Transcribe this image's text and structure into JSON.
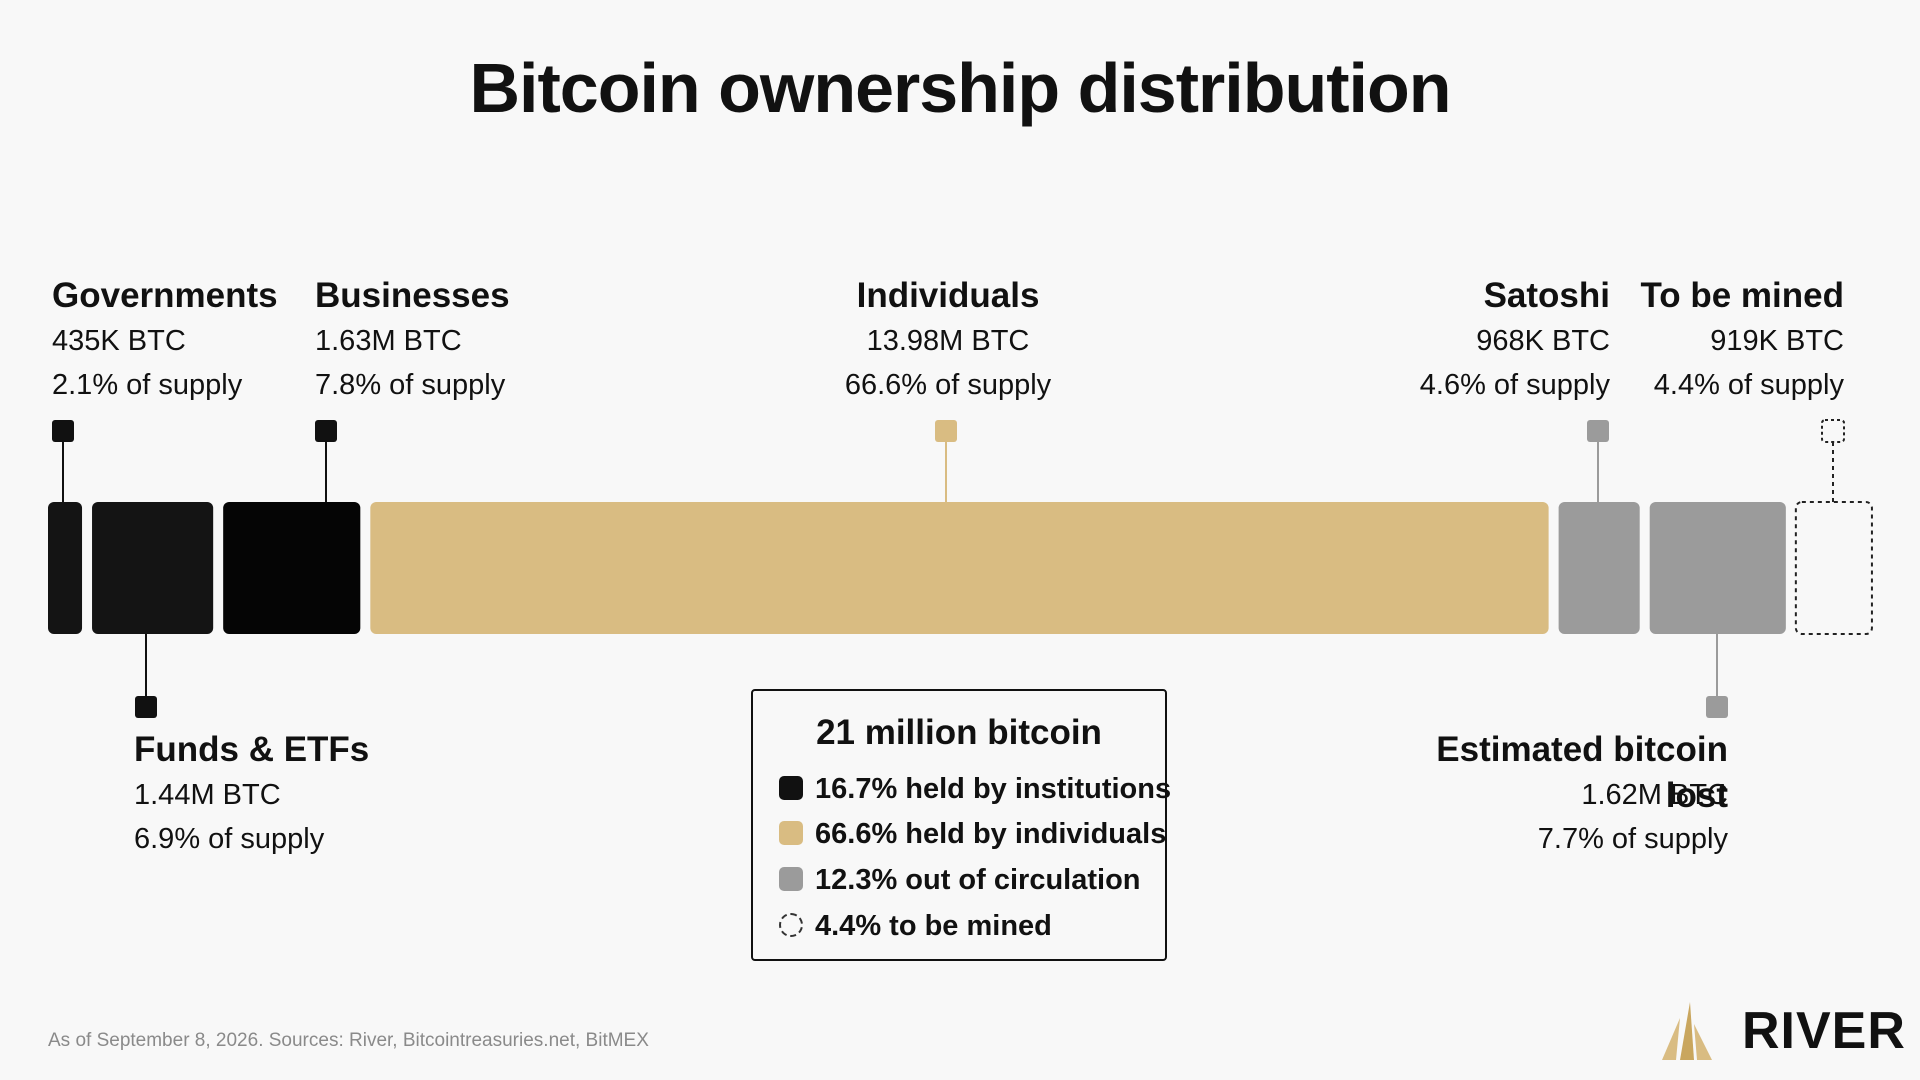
{
  "title": "Bitcoin ownership distribution",
  "colors": {
    "institution": "#141414",
    "business": "#050505",
    "individual": "#d9bc82",
    "lost": "#9b9b9b",
    "background": "#f8f8f8",
    "tick_individual": "#d9bc82",
    "tick_lost": "#9b9b9b"
  },
  "labels": {
    "governments": {
      "name": "Governments",
      "btc": "435K BTC",
      "pct": "2.1% of supply"
    },
    "businesses": {
      "name": "Businesses",
      "btc": "1.63M BTC",
      "pct": "7.8% of supply"
    },
    "individuals": {
      "name": "Individuals",
      "btc": "13.98M BTC",
      "pct": "66.6% of supply"
    },
    "satoshi": {
      "name": "Satoshi",
      "btc": "968K BTC",
      "pct": "4.6% of supply"
    },
    "to_be_mined": {
      "name": "To be mined",
      "btc": "919K BTC",
      "pct": "4.4% of supply"
    },
    "funds": {
      "name": "Funds & ETFs",
      "btc": "1.44M BTC",
      "pct": "6.9% of supply"
    },
    "lost": {
      "name": "Estimated bitcoin lost",
      "btc": "1.62M BTC",
      "pct": "7.7% of supply"
    }
  },
  "legend": {
    "title": "21 million bitcoin",
    "items": [
      {
        "text": "16.7% held by institutions",
        "swatch": "#111111",
        "style": "solid"
      },
      {
        "text": "66.6% held by individuals",
        "swatch": "#d9bc82",
        "style": "solid"
      },
      {
        "text": "12.3% out of circulation",
        "swatch": "#9b9b9b",
        "style": "solid"
      },
      {
        "text": "4.4% to be mined",
        "swatch": "none",
        "style": "dashed"
      }
    ]
  },
  "footer": "As of September 8, 2026. Sources: River, Bitcointreasuries.net, BitMEX",
  "logo": {
    "text": "RIVER",
    "icon": "river-mountain-icon"
  },
  "chart_data": {
    "type": "bar",
    "orientation": "horizontal-stacked",
    "unit": "BTC",
    "total": "21 million bitcoin",
    "categories": [
      "Governments",
      "Funds & ETFs",
      "Businesses",
      "Individuals",
      "Satoshi",
      "Estimated bitcoin lost",
      "To be mined"
    ],
    "values_btc": [
      435000,
      1440000,
      1630000,
      13980000,
      968000,
      1620000,
      919000
    ],
    "percent_of_supply": [
      2.1,
      6.9,
      7.8,
      66.6,
      4.6,
      7.7,
      4.4
    ],
    "groups": [
      "institution",
      "institution",
      "institution",
      "individual",
      "lost",
      "lost",
      "to_be_mined"
    ],
    "label_side": [
      "top",
      "bottom",
      "top",
      "top",
      "top",
      "bottom",
      "top"
    ]
  }
}
